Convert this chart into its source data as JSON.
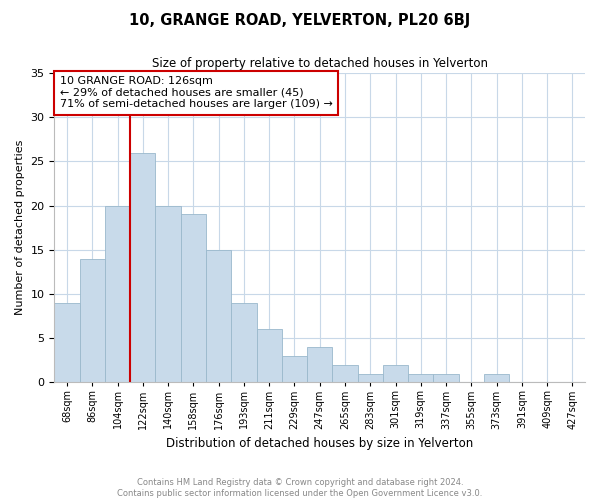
{
  "title1": "10, GRANGE ROAD, YELVERTON, PL20 6BJ",
  "title2": "Size of property relative to detached houses in Yelverton",
  "xlabel": "Distribution of detached houses by size in Yelverton",
  "ylabel": "Number of detached properties",
  "bin_labels": [
    "68sqm",
    "86sqm",
    "104sqm",
    "122sqm",
    "140sqm",
    "158sqm",
    "176sqm",
    "193sqm",
    "211sqm",
    "229sqm",
    "247sqm",
    "265sqm",
    "283sqm",
    "301sqm",
    "319sqm",
    "337sqm",
    "355sqm",
    "373sqm",
    "391sqm",
    "409sqm",
    "427sqm"
  ],
  "bar_values": [
    9,
    14,
    20,
    26,
    20,
    19,
    15,
    9,
    6,
    3,
    4,
    2,
    1,
    2,
    1,
    1,
    0,
    1,
    0,
    0,
    0
  ],
  "bar_color": "#c8daea",
  "bar_edge_color": "#9ab8cc",
  "vline_color": "#cc0000",
  "ylim": [
    0,
    35
  ],
  "yticks": [
    0,
    5,
    10,
    15,
    20,
    25,
    30,
    35
  ],
  "annotation_title": "10 GRANGE ROAD: 126sqm",
  "annotation_line1": "← 29% of detached houses are smaller (45)",
  "annotation_line2": "71% of semi-detached houses are larger (109) →",
  "annotation_box_edge": "#cc0000",
  "footer1": "Contains HM Land Registry data © Crown copyright and database right 2024.",
  "footer2": "Contains public sector information licensed under the Open Government Licence v3.0.",
  "background_color": "#ffffff",
  "grid_color": "#c8d8e8"
}
